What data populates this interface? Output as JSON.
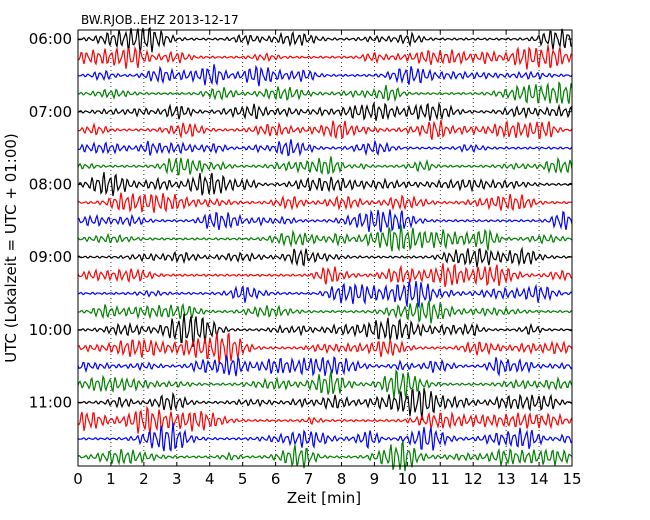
{
  "chart_data": {
    "type": "line",
    "title": "BW.RJOB..EHZ 2013-12-17",
    "xlabel": "Zeit  [min]",
    "ylabel": "UTC (Lokalzeit = UTC + 01:00)",
    "xlim": [
      0,
      15
    ],
    "x_ticks": [
      0,
      1,
      2,
      3,
      4,
      5,
      6,
      7,
      8,
      9,
      10,
      11,
      12,
      13,
      14,
      15
    ],
    "x_tick_labels": [
      "0",
      "1",
      "2",
      "3",
      "4",
      "5",
      "6",
      "7",
      "8",
      "9",
      "10",
      "11",
      "12",
      "13",
      "14",
      "15"
    ],
    "y_tick_labels": [
      "06:00",
      "07:00",
      "08:00",
      "09:00",
      "10:00",
      "11:00"
    ],
    "traces_per_hour": 4,
    "trace_count": 24,
    "trace_colors": [
      "#000000",
      "#ff0000",
      "#0000ff",
      "#008000"
    ],
    "grid": "x dotted",
    "legend": "none"
  }
}
